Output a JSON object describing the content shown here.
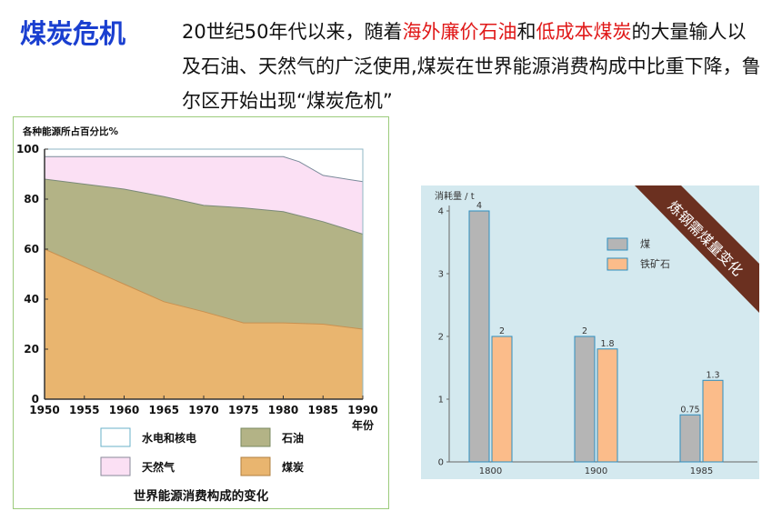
{
  "header": {
    "title": "煤炭危机",
    "intro_parts": [
      {
        "text": "20世纪50年代以来，随着",
        "hl": false
      },
      {
        "text": "海外廉价石油",
        "hl": true
      },
      {
        "text": "和",
        "hl": false
      },
      {
        "text": "低成本煤炭",
        "hl": true
      },
      {
        "text": "的大量输人以及石油、天然气的广泛使用,煤炭在世界能源消费构成中比重下降，鲁尔区开始出现“煤炭危机”",
        "hl": false
      }
    ],
    "highlight_color": "#e01818",
    "title_color": "#1a3fd0"
  },
  "left_chart_caption": "世界能源消费构成的变化",
  "right_chart_banner": "炼钢需煤量变化",
  "chart_data": [
    {
      "type": "area",
      "title": "世界能源消费构成的变化",
      "ylabel": "各种能源所占百分比%",
      "xlabel": "年份",
      "ylim": [
        0,
        100
      ],
      "xlim": [
        1950,
        1990
      ],
      "yticks": [
        0,
        20,
        40,
        60,
        80,
        100
      ],
      "xticks": [
        1950,
        1955,
        1960,
        1965,
        1970,
        1975,
        1980,
        1985,
        1990
      ],
      "stacked": true,
      "series": [
        {
          "name": "煤炭",
          "color": "#e9b56f",
          "line": "#c89050",
          "points": [
            [
              1950,
              60
            ],
            [
              1955,
              53
            ],
            [
              1960,
              46
            ],
            [
              1965,
              39
            ],
            [
              1970,
              35
            ],
            [
              1975,
              30.5
            ],
            [
              1980,
              30.5
            ],
            [
              1985,
              30
            ],
            [
              1990,
              28
            ]
          ]
        },
        {
          "name": "石油",
          "color": "#b3b386",
          "line": "#7a8a78",
          "points": [
            [
              1950,
              88
            ],
            [
              1955,
              86
            ],
            [
              1960,
              84
            ],
            [
              1965,
              81
            ],
            [
              1970,
              77.5
            ],
            [
              1975,
              76.5
            ],
            [
              1980,
              75
            ],
            [
              1985,
              71
            ],
            [
              1990,
              66
            ]
          ]
        },
        {
          "name": "天然气",
          "color": "#fbe0f4",
          "line": "#7a8a9a",
          "points": [
            [
              1950,
              97
            ],
            [
              1955,
              97
            ],
            [
              1960,
              97
            ],
            [
              1965,
              97
            ],
            [
              1970,
              97
            ],
            [
              1975,
              97
            ],
            [
              1980,
              97
            ],
            [
              1982,
              95
            ],
            [
              1985,
              89.5
            ],
            [
              1990,
              87
            ]
          ]
        },
        {
          "name": "水电和核电",
          "color": "#ffffff",
          "line": "#7aa8b8",
          "points": [
            [
              1950,
              100
            ],
            [
              1990,
              100
            ]
          ]
        }
      ],
      "legend": [
        {
          "label": "水电和核电",
          "color": "#ffffff",
          "border": "#6ab0c8"
        },
        {
          "label": "石油",
          "color": "#b3b386",
          "border": "#7a8a60"
        },
        {
          "label": "天然气",
          "color": "#fbe0f4",
          "border": "#8a8a9a"
        },
        {
          "label": "煤炭",
          "color": "#e9b56f",
          "border": "#b08040"
        }
      ],
      "legend_placement": "bottom",
      "grid": false
    },
    {
      "type": "bar",
      "title": "炼钢需煤量变化",
      "ylabel": "消耗量 / t",
      "categories": [
        "1800",
        "1900",
        "1985"
      ],
      "ylim": [
        0,
        4
      ],
      "yticks": [
        0,
        1,
        2,
        3,
        4
      ],
      "series": [
        {
          "name": "煤",
          "color": "#b5b5b5",
          "values": [
            4,
            2,
            0.75
          ],
          "labels": [
            "4",
            "2",
            "0.75"
          ]
        },
        {
          "name": "铁矿石",
          "color": "#fbbc8a",
          "values": [
            2,
            1.8,
            1.3
          ],
          "labels": [
            "2",
            "1.8",
            "1.3"
          ]
        }
      ],
      "legend_placement": "upper-middle",
      "grid": false
    }
  ]
}
